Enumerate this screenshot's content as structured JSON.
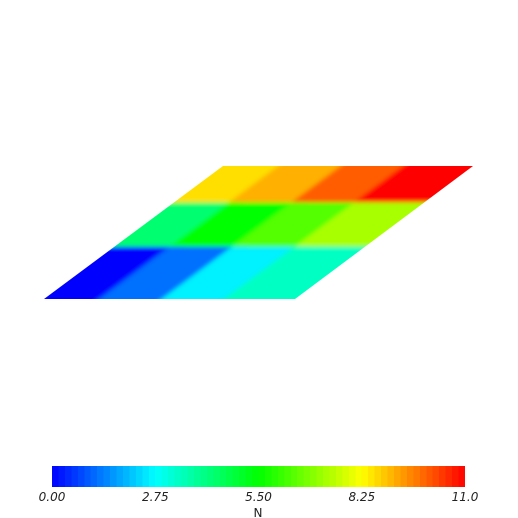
{
  "scalar_bar": {
    "title": "N",
    "min": 0.0,
    "max": 11.0,
    "ticks": [
      "0.00",
      "2.75",
      "5.50",
      "8.25",
      "11.0"
    ],
    "tick_values": [
      0.0,
      2.75,
      5.5,
      8.25,
      11.0
    ]
  },
  "mesh": {
    "rows": 3,
    "cols": 4,
    "cell_values_top_to_bottom": [
      [
        8.6,
        9.1,
        10.0,
        11.0
      ],
      [
        4.3,
        5.5,
        6.4,
        7.3
      ],
      [
        0.0,
        1.2,
        2.6,
        3.4
      ]
    ]
  },
  "colors": {
    "background": "#ffffff",
    "colormap": [
      "#0000ff",
      "#00ffff",
      "#00ff00",
      "#ffff00",
      "#ff0000"
    ]
  }
}
